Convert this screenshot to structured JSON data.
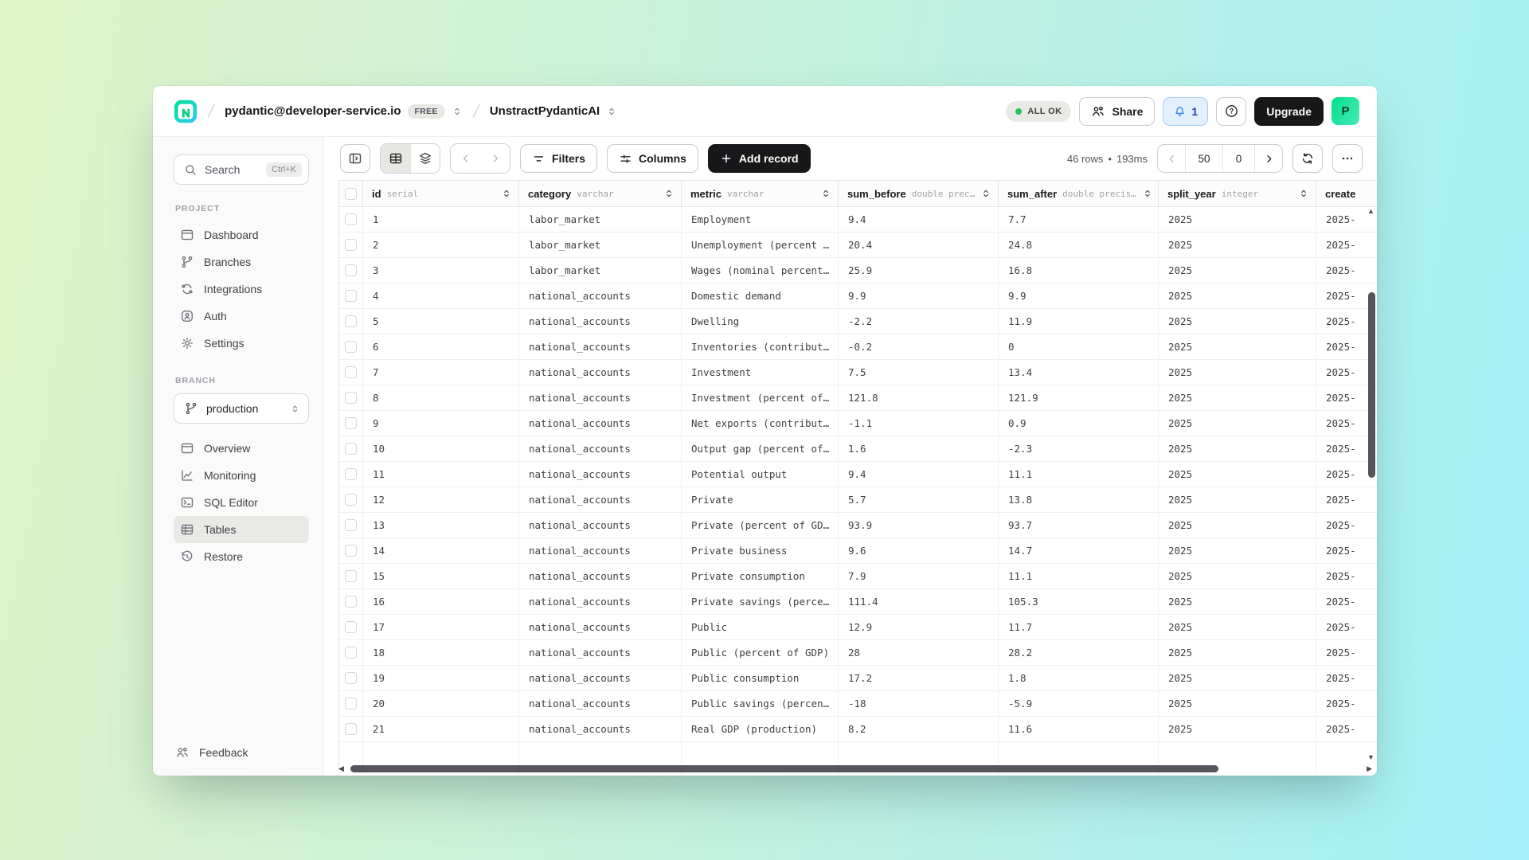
{
  "header": {
    "org": "pydantic@developer-service.io",
    "plan_badge": "FREE",
    "project": "UnstractPydanticAI",
    "status": "ALL OK",
    "share_label": "Share",
    "notifications_count": "1",
    "upgrade_label": "Upgrade",
    "avatar_initial": "P"
  },
  "sidebar": {
    "search": {
      "label": "Search",
      "shortcut": "Ctrl+K"
    },
    "project_section": "PROJECT",
    "project_items": [
      {
        "label": "Dashboard"
      },
      {
        "label": "Branches"
      },
      {
        "label": "Integrations"
      },
      {
        "label": "Auth"
      },
      {
        "label": "Settings"
      }
    ],
    "branch_section": "BRANCH",
    "branch_selector": "production",
    "branch_items": [
      {
        "label": "Overview"
      },
      {
        "label": "Monitoring"
      },
      {
        "label": "SQL Editor"
      },
      {
        "label": "Tables"
      },
      {
        "label": "Restore"
      }
    ],
    "feedback_label": "Feedback"
  },
  "toolbar": {
    "filters_label": "Filters",
    "columns_label": "Columns",
    "add_record_label": "Add record",
    "rows_count": "46 rows",
    "separator": "•",
    "query_time": "193ms",
    "page_size": "50",
    "page_offset": "0"
  },
  "table": {
    "columns": [
      {
        "name": "id",
        "type": "serial"
      },
      {
        "name": "category",
        "type": "varchar"
      },
      {
        "name": "metric",
        "type": "varchar"
      },
      {
        "name": "sum_before",
        "type": "double prec…"
      },
      {
        "name": "sum_after",
        "type": "double precis…"
      },
      {
        "name": "split_year",
        "type": "integer"
      },
      {
        "name": "create",
        "type": ""
      }
    ],
    "rows": [
      [
        "1",
        "labor_market",
        "Employment",
        "9.4",
        "7.7",
        "2025",
        "2025-"
      ],
      [
        "2",
        "labor_market",
        "Unemployment (percent …",
        "20.4",
        "24.8",
        "2025",
        "2025-"
      ],
      [
        "3",
        "labor_market",
        "Wages (nominal percent…",
        "25.9",
        "16.8",
        "2025",
        "2025-"
      ],
      [
        "4",
        "national_accounts",
        "Domestic demand",
        "9.9",
        "9.9",
        "2025",
        "2025-"
      ],
      [
        "5",
        "national_accounts",
        "Dwelling",
        "-2.2",
        "11.9",
        "2025",
        "2025-"
      ],
      [
        "6",
        "national_accounts",
        "Inventories (contribut…",
        "-0.2",
        "0",
        "2025",
        "2025-"
      ],
      [
        "7",
        "national_accounts",
        "Investment",
        "7.5",
        "13.4",
        "2025",
        "2025-"
      ],
      [
        "8",
        "national_accounts",
        "Investment (percent of…",
        "121.8",
        "121.9",
        "2025",
        "2025-"
      ],
      [
        "9",
        "national_accounts",
        "Net exports (contribut…",
        "-1.1",
        "0.9",
        "2025",
        "2025-"
      ],
      [
        "10",
        "national_accounts",
        "Output gap (percent of…",
        "1.6",
        "-2.3",
        "2025",
        "2025-"
      ],
      [
        "11",
        "national_accounts",
        "Potential output",
        "9.4",
        "11.1",
        "2025",
        "2025-"
      ],
      [
        "12",
        "national_accounts",
        "Private",
        "5.7",
        "13.8",
        "2025",
        "2025-"
      ],
      [
        "13",
        "national_accounts",
        "Private (percent of GD…",
        "93.9",
        "93.7",
        "2025",
        "2025-"
      ],
      [
        "14",
        "national_accounts",
        "Private business",
        "9.6",
        "14.7",
        "2025",
        "2025-"
      ],
      [
        "15",
        "national_accounts",
        "Private consumption",
        "7.9",
        "11.1",
        "2025",
        "2025-"
      ],
      [
        "16",
        "national_accounts",
        "Private savings (perce…",
        "111.4",
        "105.3",
        "2025",
        "2025-"
      ],
      [
        "17",
        "national_accounts",
        "Public",
        "12.9",
        "11.7",
        "2025",
        "2025-"
      ],
      [
        "18",
        "national_accounts",
        "Public (percent of GDP)",
        "28",
        "28.2",
        "2025",
        "2025-"
      ],
      [
        "19",
        "national_accounts",
        "Public consumption",
        "17.2",
        "1.8",
        "2025",
        "2025-"
      ],
      [
        "20",
        "national_accounts",
        "Public savings (percen…",
        "-18",
        "-5.9",
        "2025",
        "2025-"
      ],
      [
        "21",
        "national_accounts",
        "Real GDP (production)",
        "8.2",
        "11.6",
        "2025",
        "2025-"
      ]
    ]
  },
  "colors": {
    "accent_green": "#00e599",
    "status_dot": "#22c55e",
    "notification_blue": "#3b82f6",
    "dark_button": "#18181b",
    "bg_gradient_start": "#dff4c7",
    "bg_gradient_end": "#a3f0f8"
  }
}
